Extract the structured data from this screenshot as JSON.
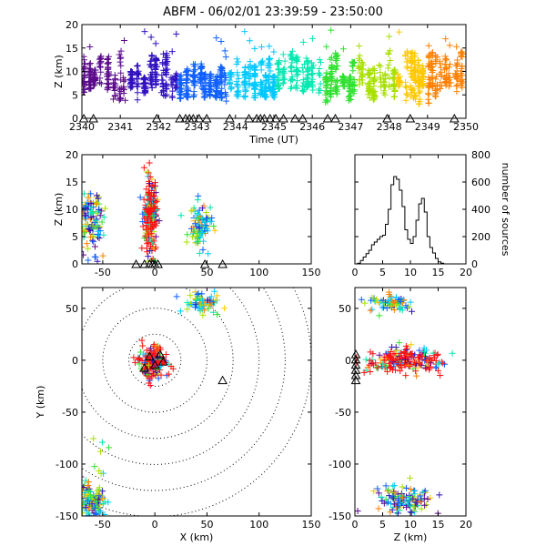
{
  "title": "ABFM - 06/02/01 23:39:59 - 23:50:00",
  "chart_data": [
    {
      "id": "time_height",
      "type": "scatter",
      "xlabel": "Time (UT)",
      "ylabel": "Z (km)",
      "xlim": [
        2340,
        2350
      ],
      "ylim": [
        0,
        20
      ],
      "xticks": [
        "2340",
        "2341",
        "2342",
        "2343",
        "2344",
        "2345",
        "2346",
        "2347",
        "2348",
        "2349",
        "2350"
      ],
      "yticks": [
        "0",
        "5",
        "10",
        "15",
        "20"
      ],
      "color_scale": "time (purple → blue → cyan → green → yellow → orange → red)",
      "stations_x": [
        2340.05,
        2340.3,
        2341.95,
        2342.55,
        2342.7,
        2342.8,
        2342.9,
        2343.05,
        2343.25,
        2343.85,
        2344.35,
        2344.55,
        2344.65,
        2344.75,
        2344.9,
        2345.05,
        2345.25,
        2345.55,
        2345.75,
        2346.4,
        2346.6,
        2347.95,
        2348.55,
        2349.7
      ]
    },
    {
      "id": "x_height",
      "type": "scatter",
      "xlabel": "",
      "ylabel": "Z (km)",
      "xlim": [
        -70,
        150
      ],
      "ylim": [
        0,
        20
      ],
      "xticks": [
        "-50",
        "0",
        "50",
        "100",
        "150"
      ],
      "yticks": [
        "0",
        "5",
        "10",
        "15",
        "20"
      ],
      "clusters": [
        {
          "x_center": -60,
          "z_center": 9,
          "color": "mixed"
        },
        {
          "x_center": -5,
          "z_center": 9,
          "color": "red"
        },
        {
          "x_center": 45,
          "z_center": 6,
          "color": "mixed"
        }
      ],
      "stations_x": [
        -18,
        -10,
        -5,
        -2,
        0,
        3,
        48,
        65
      ]
    },
    {
      "id": "altitude_histogram",
      "type": "line",
      "xlabel": "",
      "ylabel": "number of sources",
      "xlim": [
        0,
        20
      ],
      "ylim": [
        0,
        800
      ],
      "xticks": [
        "0",
        "5",
        "10",
        "15",
        "20"
      ],
      "yticks": [
        "0",
        "200",
        "400",
        "600",
        "800"
      ],
      "x": [
        0,
        0.5,
        1,
        1.5,
        2,
        2.5,
        3,
        3.5,
        4,
        4.5,
        5,
        5.5,
        6,
        6.5,
        7,
        7.5,
        8,
        8.5,
        9,
        9.5,
        10,
        10.5,
        11,
        11.5,
        12,
        12.5,
        13,
        13.5,
        14,
        14.5,
        15,
        15.5,
        16
      ],
      "values": [
        0,
        5,
        25,
        50,
        75,
        100,
        140,
        160,
        180,
        200,
        210,
        290,
        400,
        580,
        640,
        620,
        540,
        420,
        250,
        180,
        150,
        200,
        320,
        440,
        480,
        380,
        200,
        120,
        80,
        40,
        15,
        5,
        0
      ]
    },
    {
      "id": "plan_view",
      "type": "scatter",
      "xlabel": "X (km)",
      "ylabel": "Y (km)",
      "xlim": [
        -70,
        150
      ],
      "ylim": [
        -150,
        70
      ],
      "xticks": [
        "-50",
        "0",
        "50",
        "100",
        "150"
      ],
      "yticks": [
        "-150",
        "-100",
        "-50",
        "0",
        "50"
      ],
      "range_rings_km": [
        25,
        50,
        75,
        100,
        125,
        150
      ],
      "inner_ring_style": "dashed",
      "clusters": [
        {
          "x_center": 45,
          "y_center": 55
        },
        {
          "x_center": -2,
          "y_center": -2
        },
        {
          "x_center": -60,
          "y_center": -135
        }
      ],
      "stations": [
        [
          -5,
          3
        ],
        [
          0,
          -5
        ],
        [
          5,
          5
        ],
        [
          -10,
          -8
        ],
        [
          8,
          -2
        ],
        [
          65,
          -20
        ]
      ]
    },
    {
      "id": "z_y",
      "type": "scatter",
      "xlabel": "Z (km)",
      "ylabel": "",
      "xlim": [
        0,
        20
      ],
      "ylim": [
        -150,
        70
      ],
      "xticks": [
        "0",
        "5",
        "10",
        "15",
        "20"
      ],
      "yticks": [
        "-150",
        "-100",
        "-50",
        "0",
        "50"
      ],
      "clusters": [
        {
          "z_center": 7,
          "y_center": 55
        },
        {
          "z_center": 9,
          "y_center": 0
        },
        {
          "z_center": 9,
          "y_center": -135
        }
      ],
      "stations_y": [
        5,
        0,
        -5,
        -10,
        -15,
        -20
      ]
    }
  ]
}
